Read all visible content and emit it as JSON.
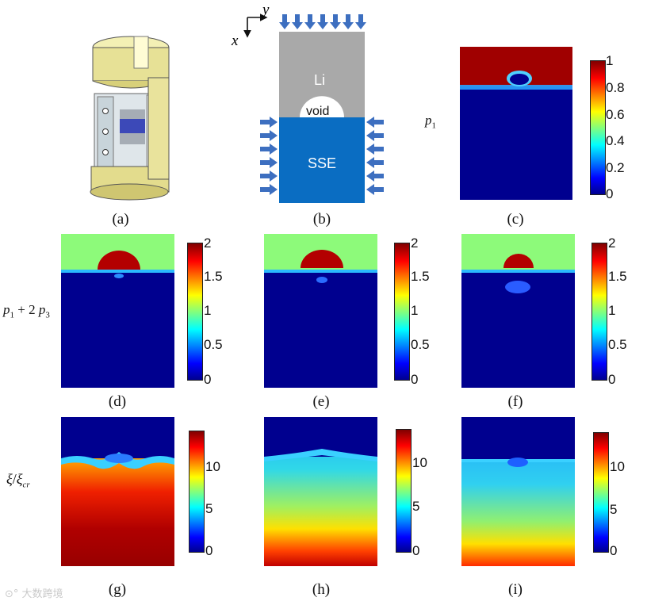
{
  "captions": {
    "a": "(a)",
    "b": "(b)",
    "c": "(c)",
    "d": "(d)",
    "e": "(e)",
    "f": "(f)",
    "g": "(g)",
    "h": "(h)",
    "i": "(i)"
  },
  "row_labels": {
    "p1": {
      "main": "p",
      "sub": "1"
    },
    "p1p3": {
      "p": "p",
      "s1": "1",
      "plus": " + 2",
      "p2": "p",
      "s3": "3"
    },
    "xi": {
      "xi": "ξ",
      "slash": "/",
      "xi2": "ξ",
      "sub": "cr"
    }
  },
  "schematic": {
    "axis_y": "y",
    "axis_x": "x",
    "li_label": "Li",
    "void_label": "void",
    "sse_label": "SSE",
    "colors": {
      "li": "#a9a9a9",
      "sse": "#0a6dc2",
      "arrow": "#3d6fc0"
    }
  },
  "colorbars": {
    "c": {
      "ticks": [
        "1",
        "0.8",
        "0.6",
        "0.4",
        "0.2",
        "0"
      ]
    },
    "d": {
      "ticks": [
        "2",
        "1.5",
        "1",
        "0.5",
        "0"
      ]
    },
    "e": {
      "ticks": [
        "2",
        "1.5",
        "1",
        "0.5",
        "0"
      ]
    },
    "f": {
      "ticks": [
        "2",
        "1.5",
        "1",
        "0.5",
        "0"
      ]
    },
    "g": {
      "ticks": [
        "10",
        "5",
        "0"
      ]
    },
    "h": {
      "ticks": [
        "10",
        "5",
        "0"
      ]
    },
    "i": {
      "ticks": [
        "10",
        "5",
        "0"
      ]
    }
  },
  "watermark": "大数跨境"
}
